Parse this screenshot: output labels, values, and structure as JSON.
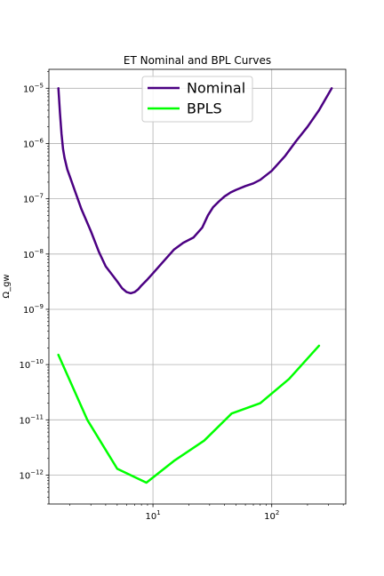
{
  "chart_data": {
    "type": "line",
    "title": "ET Nominal and BPL Curves",
    "xlabel": "",
    "ylabel": "Ω_gw",
    "x_scale": "log",
    "y_scale": "log",
    "xlim": [
      1.33,
      420
    ],
    "ylim": [
      3e-13,
      2.2e-05
    ],
    "grid": true,
    "legend": {
      "placement": "top-center"
    },
    "x_ticks": [
      {
        "value": 10,
        "label": "10",
        "sup": "1"
      },
      {
        "value": 100,
        "label": "10",
        "sup": "2"
      }
    ],
    "y_ticks": [
      {
        "value": 1e-12,
        "label": "10",
        "sup": "−12"
      },
      {
        "value": 1e-11,
        "label": "10",
        "sup": "−11"
      },
      {
        "value": 1e-10,
        "label": "10",
        "sup": "−10"
      },
      {
        "value": 1e-09,
        "label": "10",
        "sup": "−9"
      },
      {
        "value": 1e-08,
        "label": "10",
        "sup": "−8"
      },
      {
        "value": 1e-07,
        "label": "10",
        "sup": "−7"
      },
      {
        "value": 1e-06,
        "label": "10",
        "sup": "−6"
      },
      {
        "value": 1e-05,
        "label": "10",
        "sup": "−5"
      }
    ],
    "series": [
      {
        "name": "Nominal",
        "color": "#4b0082",
        "x": [
          1.6,
          1.65,
          1.7,
          1.75,
          1.8,
          1.9,
          2.0,
          2.2,
          2.5,
          3.0,
          3.5,
          4.0,
          5.0,
          5.5,
          6.0,
          6.5,
          7.0,
          7.5,
          8.0,
          9.0,
          10.0,
          12.0,
          15.0,
          18.0,
          22.0,
          26.0,
          29.0,
          32.0,
          36.0,
          40.0,
          45.0,
          50.0,
          60.0,
          70.0,
          80.0,
          100.0,
          130.0,
          160.0,
          200.0,
          250.0,
          320.0
        ],
        "y": [
          1e-05,
          3.5e-06,
          1.5e-06,
          8e-07,
          5.5e-07,
          3.4e-07,
          2.5e-07,
          1.4e-07,
          6.5e-08,
          2.6e-08,
          1.1e-08,
          6e-09,
          3.2e-09,
          2.4e-09,
          2.05e-09,
          1.95e-09,
          2.05e-09,
          2.3e-09,
          2.7e-09,
          3.5e-09,
          4.5e-09,
          7e-09,
          1.2e-08,
          1.6e-08,
          2e-08,
          3e-08,
          5e-08,
          7e-08,
          9e-08,
          1.1e-07,
          1.3e-07,
          1.45e-07,
          1.7e-07,
          1.9e-07,
          2.2e-07,
          3.2e-07,
          6e-07,
          1.1e-06,
          2e-06,
          4e-06,
          1e-05
        ]
      },
      {
        "name": "BPLS",
        "color": "#00ff00",
        "x": [
          1.6,
          2.8,
          5.0,
          8.8,
          15.0,
          27.0,
          46.0,
          80.0,
          140.0,
          250.0
        ],
        "y": [
          1.5e-10,
          1e-11,
          1.3e-12,
          7.3e-13,
          1.8e-12,
          4.2e-12,
          1.3e-11,
          2e-11,
          5.5e-11,
          2.2e-10
        ]
      }
    ]
  }
}
